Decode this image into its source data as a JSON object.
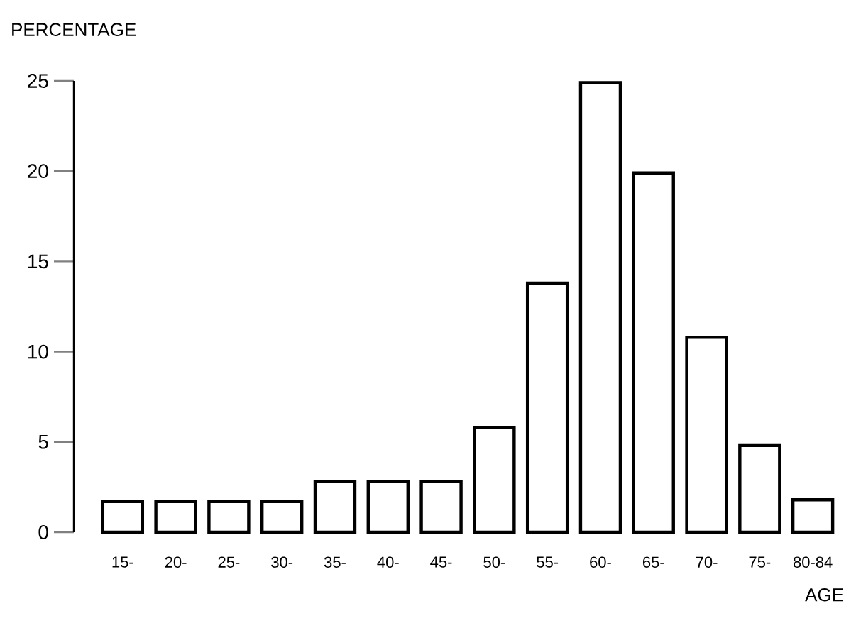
{
  "chart_data": {
    "type": "bar",
    "xlabel": "AGE",
    "ylabel": "PERCENTAGE",
    "categories": [
      "15-",
      "20-",
      "25-",
      "30-",
      "35-",
      "40-",
      "45-",
      "50-",
      "55-",
      "60-",
      "65-",
      "70-",
      "75-",
      "80-84"
    ],
    "values": [
      1.7,
      1.7,
      1.7,
      1.7,
      2.8,
      2.8,
      2.8,
      5.8,
      13.8,
      24.9,
      19.9,
      10.8,
      4.8,
      1.8
    ],
    "color": "#ffffff",
    "ylim": [
      0,
      25
    ],
    "yticks": [
      0,
      5,
      10,
      15,
      20,
      25
    ]
  }
}
